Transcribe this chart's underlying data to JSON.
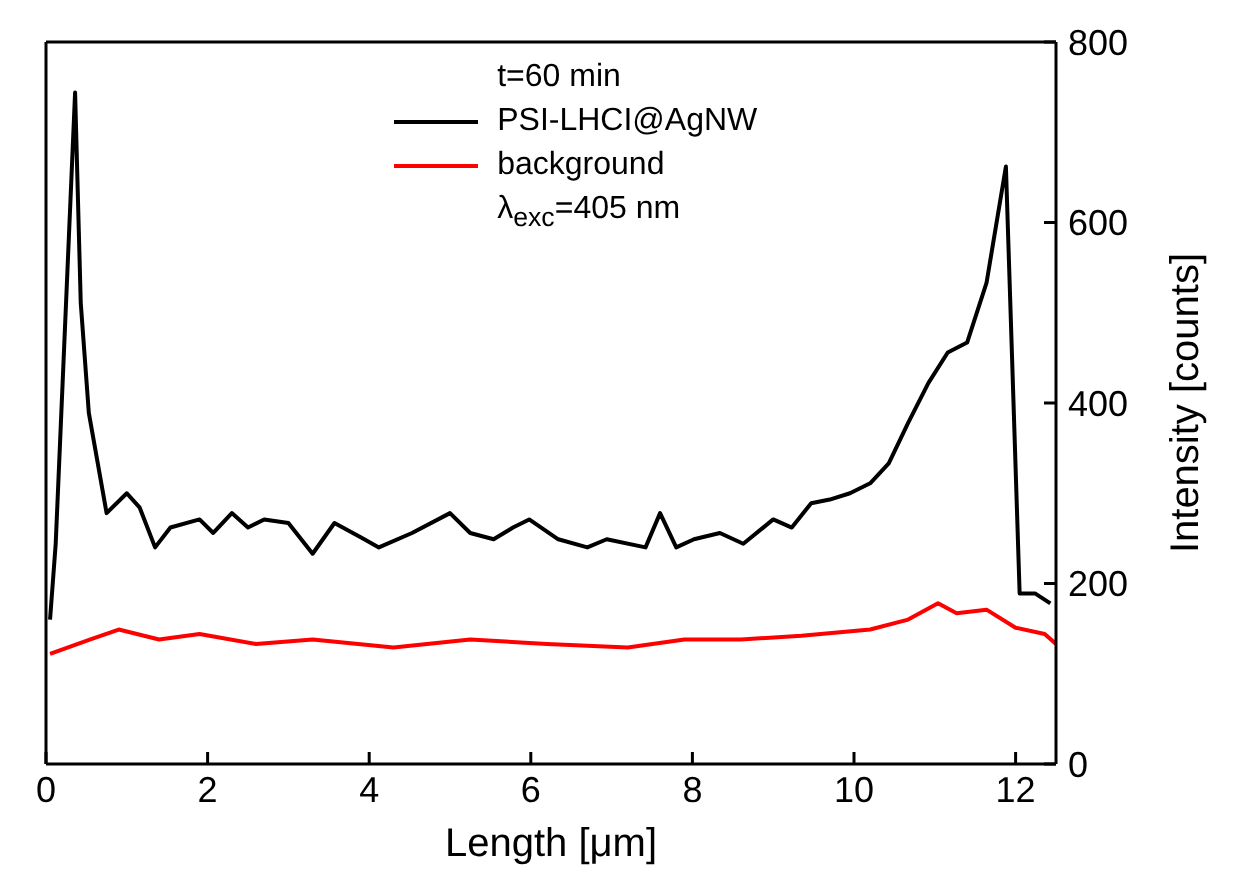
{
  "chart_data": {
    "type": "line",
    "xlabel": "Length [μm]",
    "ylabel": "Intensity [counts]",
    "legend_title": "t=60 min",
    "annotations": [
      "λ$_{exc}$=405 nm"
    ],
    "xlim": [
      0,
      12.5
    ],
    "xticks": [
      0,
      2,
      4,
      6,
      8,
      10,
      12
    ],
    "ylim": [
      0,
      800
    ],
    "yticks": [
      0,
      200,
      400,
      600,
      800
    ],
    "legend": "top",
    "line_style": "solid",
    "marker": "none",
    "series": [
      {
        "name": "PSI-LHCI@AgNW",
        "color": "#000000",
        "x": [
          0.05,
          0.12,
          0.36,
          0.43,
          0.53,
          0.75,
          1,
          1.16,
          1.35,
          1.54,
          1.9,
          2.07,
          2.3,
          2.5,
          2.7,
          3,
          3.3,
          3.57,
          3.9,
          4.12,
          4.53,
          5,
          5.25,
          5.54,
          5.78,
          5.98,
          6.34,
          6.7,
          6.94,
          7.42,
          7.6,
          7.8,
          8.02,
          8.34,
          8.63,
          9,
          9.23,
          9.47,
          9.7,
          9.95,
          10.2,
          10.43,
          10.67,
          10.92,
          11.16,
          11.4,
          11.64,
          11.88,
          12.05,
          12.24,
          12.43
        ],
        "values": [
          160,
          244,
          744,
          511,
          389,
          278,
          300,
          284,
          240,
          262,
          271,
          256,
          278,
          262,
          271,
          267,
          233,
          267,
          251,
          240,
          256,
          278,
          256,
          249,
          262,
          271,
          249,
          240,
          249,
          240,
          278,
          240,
          249,
          256,
          244,
          271,
          262,
          289,
          293,
          300,
          311,
          333,
          378,
          422,
          456,
          467,
          533,
          662,
          189,
          189,
          178
        ]
      },
      {
        "name": "background",
        "color": "#ff0000",
        "x": [
          0.05,
          0.55,
          0.9,
          1.4,
          1.9,
          2.6,
          3.3,
          4.3,
          5.25,
          6.2,
          7.2,
          7.9,
          8.6,
          9.35,
          10.2,
          10.67,
          11.04,
          11.27,
          11.64,
          12,
          12.36,
          12.5
        ],
        "values": [
          122,
          138,
          149,
          138,
          144,
          133,
          138,
          129,
          138,
          133,
          129,
          138,
          138,
          142,
          149,
          160,
          178,
          167,
          171,
          151,
          144,
          133
        ]
      }
    ]
  }
}
